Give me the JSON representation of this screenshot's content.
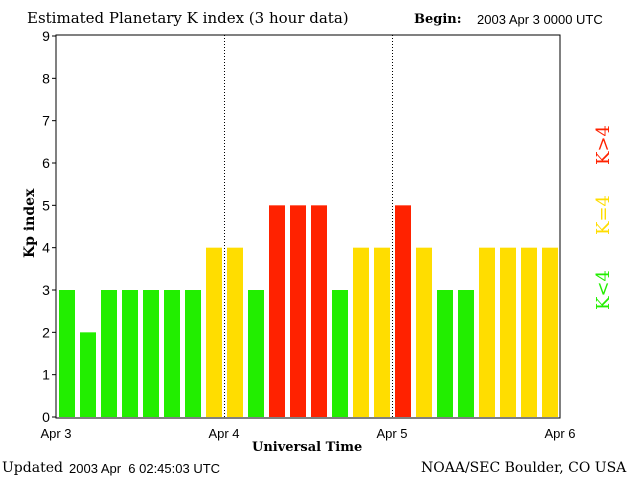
{
  "chart_data": {
    "type": "bar",
    "title": "Estimated Planetary K index (3 hour data)",
    "begin_label": "Begin:",
    "begin_value": "2003 Apr 3 0000 UTC",
    "xlabel": "Universal Time",
    "ylabel": "Kp index",
    "ylim": [
      0,
      9
    ],
    "yticks": [
      "0",
      "1",
      "2",
      "3",
      "4",
      "5",
      "6",
      "7",
      "8",
      "9"
    ],
    "xticks": [
      "Apr 3",
      "Apr 4",
      "Apr 5",
      "Apr 6"
    ],
    "values": [
      3,
      2,
      3,
      3,
      3,
      3,
      3,
      4,
      4,
      3,
      5,
      5,
      5,
      3,
      4,
      4,
      5,
      4,
      3,
      3,
      4,
      4,
      4,
      4
    ],
    "colors": {
      "below": "#22ee00",
      "equal": "#ffdd00",
      "above": "#ff2200"
    },
    "legend": [
      {
        "label": "K>4",
        "color": "#ff2200"
      },
      {
        "label": "K=4",
        "color": "#ffdd00"
      },
      {
        "label": "K<4",
        "color": "#22ee00"
      }
    ],
    "legend_placement": "right",
    "day_separators": "dotted"
  },
  "footer": {
    "updated_label": "Updated",
    "updated_value": "2003 Apr  6 02:45:03 UTC",
    "source": "NOAA/SEC Boulder, CO USA"
  }
}
